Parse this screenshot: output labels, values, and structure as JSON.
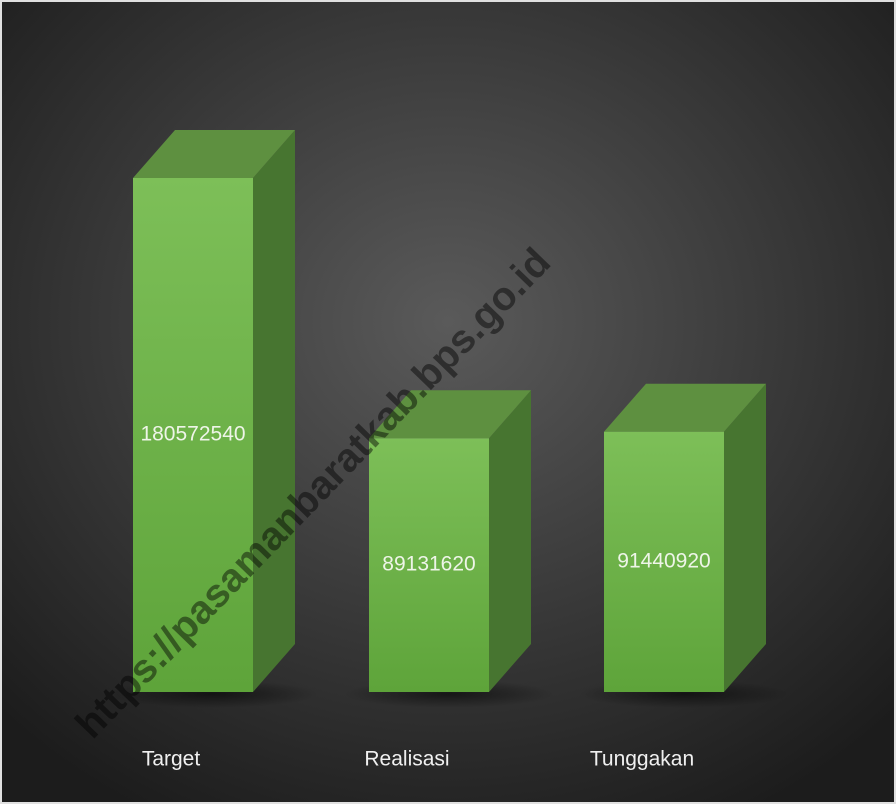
{
  "chart_data": {
    "type": "bar3d",
    "categories": [
      "Target",
      "Realisasi",
      "Tunggakan"
    ],
    "values": [
      180572540,
      89131620,
      91440920
    ],
    "color": "#6cb247",
    "watermark": "https://pasamanbaratkab.bps.go.id"
  }
}
